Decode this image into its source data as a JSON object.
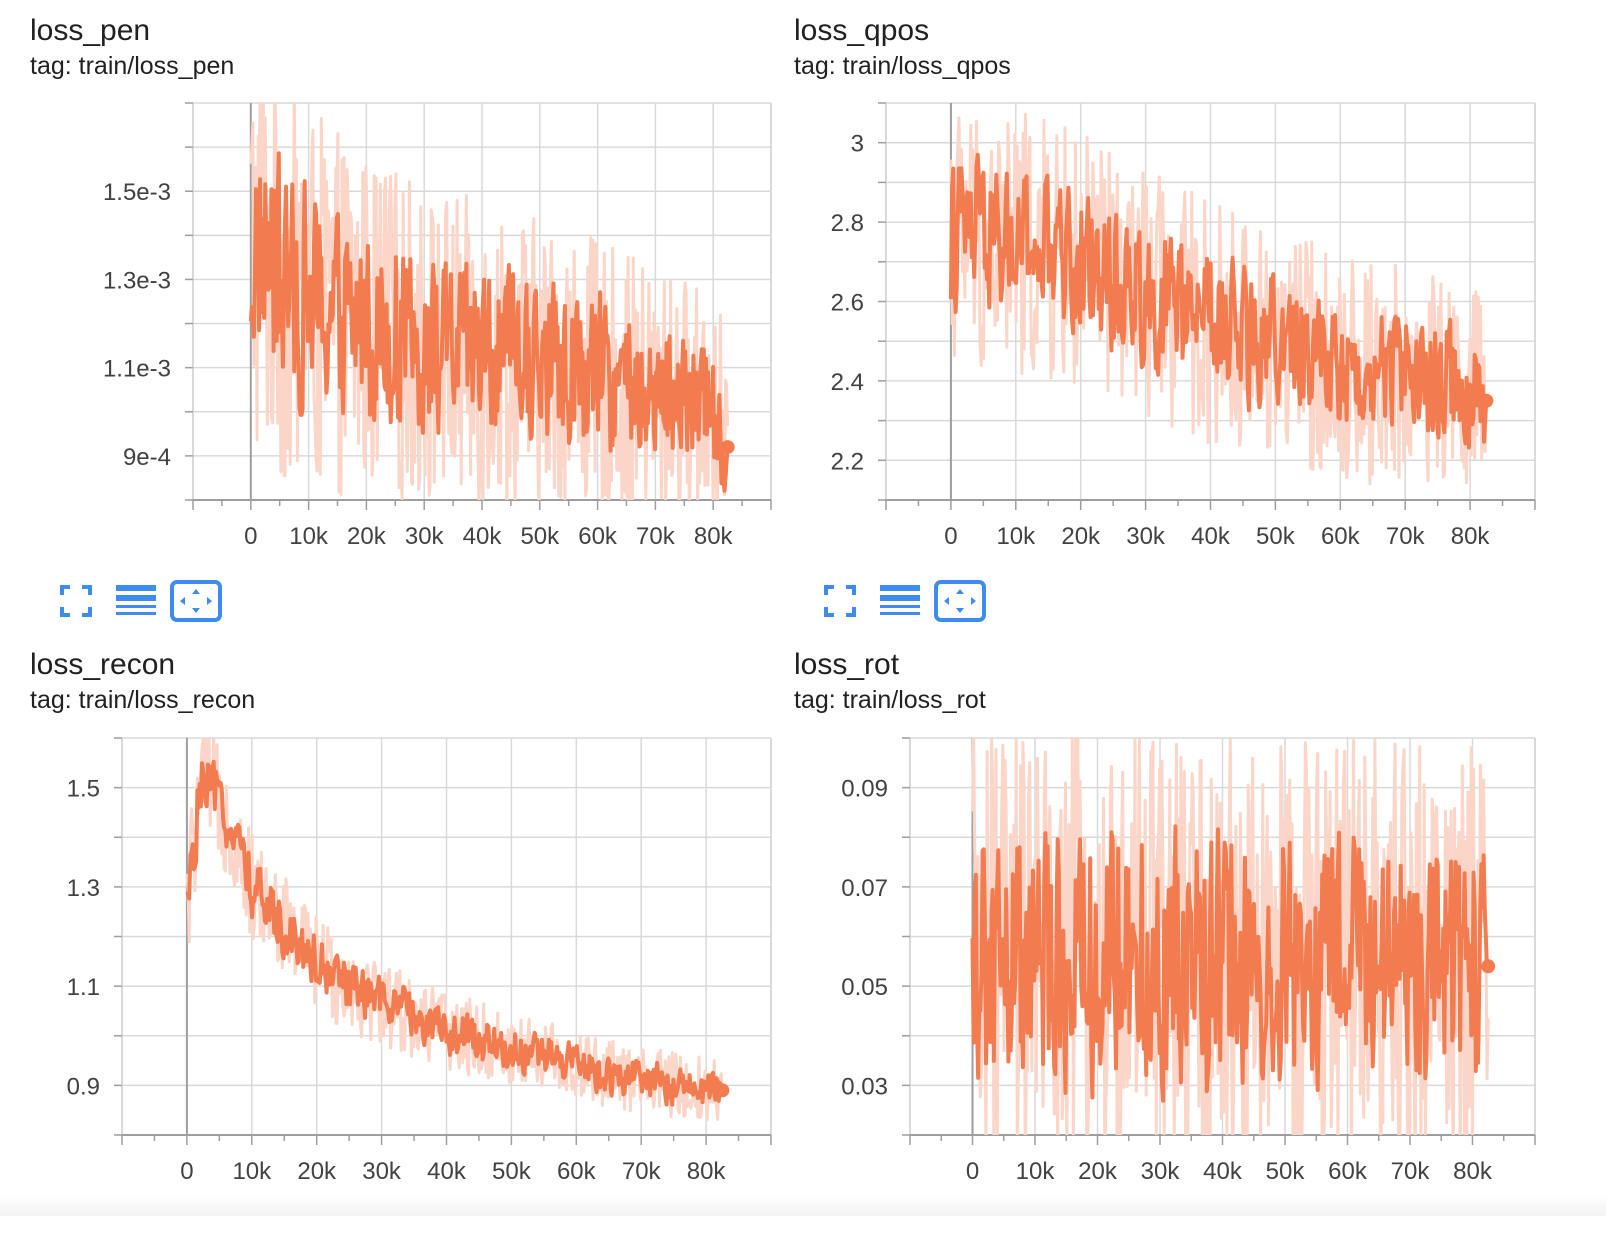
{
  "colors": {
    "accent": "#f27c50",
    "raw": "#fbd6c8",
    "icon": "#3d8df0",
    "grid": "#d9d9d9",
    "axis": "#9e9e9e"
  },
  "toolbar": {
    "icons": [
      "fullscreen-icon",
      "data-list-icon",
      "fit-domain-icon"
    ]
  },
  "chart_data": [
    {
      "type": "line",
      "title": "loss_pen",
      "subtitle": "tag: train/loss_pen",
      "xlim": [
        -10000,
        90000
      ],
      "ylim": [
        0.0008,
        0.0017
      ],
      "xticks": [
        0,
        10000,
        20000,
        30000,
        40000,
        50000,
        60000,
        70000,
        80000
      ],
      "xtick_labels": [
        "0",
        "10k",
        "20k",
        "30k",
        "40k",
        "50k",
        "60k",
        "70k",
        "80k"
      ],
      "yticks": [
        0.0009,
        0.0011,
        0.0013,
        0.0015
      ],
      "ytick_labels": [
        "9e-4",
        "1.1e-3",
        "1.3e-3",
        "1.5e-3"
      ],
      "grid": true,
      "series": [
        {
          "role": "smoothed",
          "x": [
            0,
            2000,
            5000,
            10000,
            15000,
            20000,
            25000,
            30000,
            35000,
            40000,
            45000,
            50000,
            55000,
            60000,
            65000,
            70000,
            75000,
            80000,
            82500
          ],
          "y": [
            0.00135,
            0.00138,
            0.0013,
            0.00125,
            0.00122,
            0.0012,
            0.00118,
            0.00115,
            0.00114,
            0.00113,
            0.00112,
            0.00111,
            0.0011,
            0.00108,
            0.00106,
            0.00104,
            0.00103,
            0.00101,
            0.00092
          ]
        },
        {
          "role": "noise_amplitude",
          "x": [
            0,
            10000,
            20000,
            30000,
            40000,
            50000,
            60000,
            70000,
            82500
          ],
          "y": [
            0.00045,
            0.0004,
            0.00035,
            0.00033,
            0.00032,
            0.0003,
            0.00028,
            0.00026,
            0.00024
          ]
        }
      ],
      "last_point": {
        "x": 82500,
        "y": 0.00092
      }
    },
    {
      "type": "line",
      "title": "loss_qpos",
      "subtitle": "tag: train/loss_qpos",
      "xlim": [
        -10000,
        90000
      ],
      "ylim": [
        2.1,
        3.1
      ],
      "xticks": [
        0,
        10000,
        20000,
        30000,
        40000,
        50000,
        60000,
        70000,
        80000
      ],
      "xtick_labels": [
        "0",
        "10k",
        "20k",
        "30k",
        "40k",
        "50k",
        "60k",
        "70k",
        "80k"
      ],
      "yticks": [
        2.2,
        2.4,
        2.6,
        2.8,
        3.0
      ],
      "ytick_labels": [
        "2.2",
        "2.4",
        "2.6",
        "2.8",
        "3"
      ],
      "grid": true,
      "series": [
        {
          "role": "smoothed",
          "x": [
            0,
            5000,
            10000,
            15000,
            20000,
            25000,
            30000,
            35000,
            40000,
            45000,
            50000,
            55000,
            60000,
            65000,
            70000,
            75000,
            80000,
            82500
          ],
          "y": [
            2.78,
            2.76,
            2.74,
            2.72,
            2.7,
            2.66,
            2.62,
            2.58,
            2.55,
            2.52,
            2.5,
            2.47,
            2.44,
            2.42,
            2.42,
            2.4,
            2.38,
            2.35
          ]
        },
        {
          "role": "noise_amplitude",
          "x": [
            0,
            20000,
            40000,
            60000,
            82500
          ],
          "y": [
            0.32,
            0.3,
            0.28,
            0.26,
            0.24
          ]
        }
      ],
      "last_point": {
        "x": 82500,
        "y": 2.35
      }
    },
    {
      "type": "line",
      "title": "loss_recon",
      "subtitle": "tag: train/loss_recon",
      "xlim": [
        -10000,
        90000
      ],
      "ylim": [
        0.8,
        1.6
      ],
      "xticks": [
        0,
        10000,
        20000,
        30000,
        40000,
        50000,
        60000,
        70000,
        80000
      ],
      "xtick_labels": [
        "0",
        "10k",
        "20k",
        "30k",
        "40k",
        "50k",
        "60k",
        "70k",
        "80k"
      ],
      "yticks": [
        0.9,
        1.1,
        1.3,
        1.5
      ],
      "ytick_labels": [
        "0.9",
        "1.1",
        "1.3",
        "1.5"
      ],
      "grid": true,
      "series": [
        {
          "role": "smoothed",
          "x": [
            0,
            2000,
            5000,
            8000,
            10000,
            15000,
            20000,
            25000,
            30000,
            35000,
            40000,
            45000,
            50000,
            55000,
            60000,
            65000,
            70000,
            75000,
            80000,
            82500
          ],
          "y": [
            1.25,
            1.5,
            1.48,
            1.38,
            1.3,
            1.22,
            1.15,
            1.1,
            1.07,
            1.04,
            1.01,
            0.99,
            0.97,
            0.96,
            0.94,
            0.92,
            0.91,
            0.9,
            0.89,
            0.89
          ]
        },
        {
          "role": "noise_amplitude",
          "x": [
            0,
            10000,
            30000,
            50000,
            82500
          ],
          "y": [
            0.12,
            0.1,
            0.08,
            0.07,
            0.06
          ]
        }
      ],
      "last_point": {
        "x": 82500,
        "y": 0.89
      }
    },
    {
      "type": "line",
      "title": "loss_rot",
      "subtitle": "tag: train/loss_rot",
      "xlim": [
        -10000,
        90000
      ],
      "ylim": [
        0.02,
        0.1
      ],
      "xticks": [
        0,
        10000,
        20000,
        30000,
        40000,
        50000,
        60000,
        70000,
        80000
      ],
      "xtick_labels": [
        "0",
        "10k",
        "20k",
        "30k",
        "40k",
        "50k",
        "60k",
        "70k",
        "80k"
      ],
      "yticks": [
        0.03,
        0.05,
        0.07,
        0.09
      ],
      "ytick_labels": [
        "0.03",
        "0.05",
        "0.07",
        "0.09"
      ],
      "grid": true,
      "series": [
        {
          "role": "smoothed",
          "x": [
            0,
            20000,
            40000,
            60000,
            82500
          ],
          "y": [
            0.055,
            0.055,
            0.055,
            0.056,
            0.054
          ]
        },
        {
          "role": "noise_amplitude",
          "x": [
            0,
            40000,
            82500
          ],
          "y": [
            0.042,
            0.042,
            0.042
          ]
        }
      ],
      "last_point": {
        "x": 82500,
        "y": 0.054
      }
    }
  ]
}
